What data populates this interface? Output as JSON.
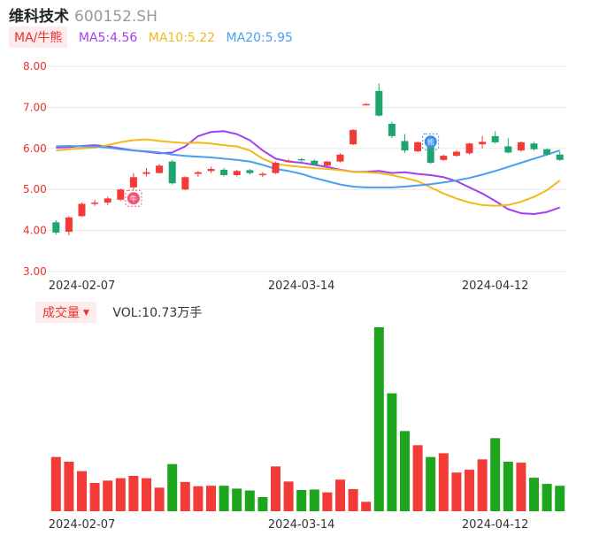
{
  "header": {
    "name": "维科技术",
    "code": "600152.SH"
  },
  "ma_legend": {
    "tag": "MA/牛熊",
    "items": [
      {
        "label": "MA5:4.56",
        "color": "#a23ff0"
      },
      {
        "label": "MA10:5.22",
        "color": "#f3b91b"
      },
      {
        "label": "MA20:5.95",
        "color": "#4a9ef0"
      }
    ]
  },
  "volume_legend": {
    "tag": "成交量",
    "caret": "▼",
    "value": "VOL:10.73万手"
  },
  "colors": {
    "up": "#f23a36",
    "down": "#1ea56e",
    "vol_down": "#1ea51e",
    "axis_text": "#e9302d",
    "grid": "#e8e8e8"
  },
  "markers": [
    {
      "index": 6,
      "label": "牛",
      "color": "#f0547a"
    },
    {
      "index": 29,
      "label": "熊",
      "color": "#3a8ef0"
    }
  ],
  "chart_data": [
    {
      "type": "candlestick",
      "title": "",
      "y_ticks": [
        "8.00",
        "7.00",
        "6.00",
        "5.00",
        "4.00",
        "3.00"
      ],
      "ylim": [
        3.0,
        8.0
      ],
      "x_tick_labels": [
        {
          "index": 2,
          "label": "2024-02-07"
        },
        {
          "index": 19,
          "label": "2024-03-14"
        },
        {
          "index": 34,
          "label": "2024-04-12"
        }
      ],
      "grid": true,
      "candles": [
        {
          "o": 4.2,
          "c": 3.95,
          "h": 4.25,
          "l": 3.9
        },
        {
          "o": 3.97,
          "c": 4.32,
          "h": 4.35,
          "l": 3.88
        },
        {
          "o": 4.35,
          "c": 4.65,
          "h": 4.68,
          "l": 4.33
        },
        {
          "o": 4.66,
          "c": 4.68,
          "h": 4.75,
          "l": 4.6
        },
        {
          "o": 4.68,
          "c": 4.78,
          "h": 4.82,
          "l": 4.62
        },
        {
          "o": 4.75,
          "c": 5.0,
          "h": 5.02,
          "l": 4.72
        },
        {
          "o": 5.05,
          "c": 5.3,
          "h": 5.4,
          "l": 5.0
        },
        {
          "o": 5.38,
          "c": 5.42,
          "h": 5.52,
          "l": 5.32
        },
        {
          "o": 5.4,
          "c": 5.58,
          "h": 5.62,
          "l": 5.38
        },
        {
          "o": 5.68,
          "c": 5.15,
          "h": 5.72,
          "l": 5.12
        },
        {
          "o": 5.0,
          "c": 5.3,
          "h": 5.32,
          "l": 4.98
        },
        {
          "o": 5.38,
          "c": 5.42,
          "h": 5.45,
          "l": 5.3
        },
        {
          "o": 5.45,
          "c": 5.5,
          "h": 5.55,
          "l": 5.4
        },
        {
          "o": 5.48,
          "c": 5.35,
          "h": 5.52,
          "l": 5.32
        },
        {
          "o": 5.35,
          "c": 5.45,
          "h": 5.48,
          "l": 5.32
        },
        {
          "o": 5.47,
          "c": 5.4,
          "h": 5.5,
          "l": 5.36
        },
        {
          "o": 5.35,
          "c": 5.38,
          "h": 5.42,
          "l": 5.3
        },
        {
          "o": 5.4,
          "c": 5.65,
          "h": 5.68,
          "l": 5.38
        },
        {
          "o": 5.7,
          "c": 5.7,
          "h": 5.74,
          "l": 5.66
        },
        {
          "o": 5.74,
          "c": 5.72,
          "h": 5.76,
          "l": 5.68
        },
        {
          "o": 5.7,
          "c": 5.6,
          "h": 5.73,
          "l": 5.58
        },
        {
          "o": 5.58,
          "c": 5.68,
          "h": 5.7,
          "l": 5.55
        },
        {
          "o": 5.68,
          "c": 5.85,
          "h": 5.88,
          "l": 5.66
        },
        {
          "o": 6.1,
          "c": 6.45,
          "h": 6.47,
          "l": 6.08
        },
        {
          "o": 7.08,
          "c": 7.08,
          "h": 7.1,
          "l": 7.06
        },
        {
          "o": 7.4,
          "c": 6.8,
          "h": 7.58,
          "l": 6.78
        },
        {
          "o": 6.6,
          "c": 6.3,
          "h": 6.65,
          "l": 6.25
        },
        {
          "o": 6.18,
          "c": 5.95,
          "h": 6.35,
          "l": 5.9
        },
        {
          "o": 5.93,
          "c": 6.15,
          "h": 6.17,
          "l": 5.9
        },
        {
          "o": 6.1,
          "c": 5.65,
          "h": 6.12,
          "l": 5.62
        },
        {
          "o": 5.72,
          "c": 5.82,
          "h": 5.85,
          "l": 5.7
        },
        {
          "o": 5.82,
          "c": 5.92,
          "h": 5.95,
          "l": 5.8
        },
        {
          "o": 5.88,
          "c": 6.12,
          "h": 6.14,
          "l": 5.85
        },
        {
          "o": 6.1,
          "c": 6.16,
          "h": 6.3,
          "l": 6.0
        },
        {
          "o": 6.3,
          "c": 6.15,
          "h": 6.42,
          "l": 6.12
        },
        {
          "o": 6.05,
          "c": 5.9,
          "h": 6.25,
          "l": 5.88
        },
        {
          "o": 5.95,
          "c": 6.15,
          "h": 6.17,
          "l": 5.92
        },
        {
          "o": 6.12,
          "c": 5.98,
          "h": 6.16,
          "l": 5.95
        },
        {
          "o": 5.98,
          "c": 5.85,
          "h": 6.0,
          "l": 5.82
        },
        {
          "o": 5.85,
          "c": 5.72,
          "h": 5.92,
          "l": 5.7
        }
      ],
      "ma_lines": [
        {
          "name": "MA5",
          "color": "#a23ff0",
          "values": [
            6.02,
            6.03,
            6.06,
            6.08,
            6.05,
            6.0,
            5.95,
            5.92,
            5.88,
            5.9,
            6.05,
            6.3,
            6.4,
            6.42,
            6.35,
            6.2,
            5.95,
            5.75,
            5.68,
            5.65,
            5.6,
            5.55,
            5.48,
            5.43,
            5.43,
            5.45,
            5.4,
            5.42,
            5.38,
            5.35,
            5.3,
            5.2,
            5.05,
            4.9,
            4.72,
            4.52,
            4.42,
            4.4,
            4.45,
            4.56
          ]
        },
        {
          "name": "MA10",
          "color": "#f3b91b",
          "values": [
            5.95,
            5.98,
            6.0,
            6.02,
            6.08,
            6.15,
            6.2,
            6.22,
            6.18,
            6.15,
            6.13,
            6.14,
            6.12,
            6.08,
            6.05,
            5.95,
            5.75,
            5.62,
            5.58,
            5.55,
            5.52,
            5.5,
            5.47,
            5.43,
            5.42,
            5.4,
            5.35,
            5.28,
            5.2,
            5.05,
            4.9,
            4.78,
            4.68,
            4.62,
            4.6,
            4.62,
            4.7,
            4.82,
            4.98,
            5.22
          ]
        },
        {
          "name": "MA20",
          "color": "#4a9ef0",
          "values": [
            6.05,
            6.06,
            6.05,
            6.05,
            6.02,
            5.98,
            5.95,
            5.93,
            5.9,
            5.85,
            5.82,
            5.8,
            5.78,
            5.75,
            5.72,
            5.68,
            5.6,
            5.5,
            5.45,
            5.38,
            5.28,
            5.2,
            5.12,
            5.07,
            5.05,
            5.05,
            5.05,
            5.07,
            5.1,
            5.13,
            5.17,
            5.22,
            5.28,
            5.36,
            5.45,
            5.55,
            5.65,
            5.75,
            5.85,
            5.95
          ]
        }
      ]
    },
    {
      "type": "bar",
      "title": "",
      "x_tick_labels": [
        {
          "index": 2,
          "label": "2024-02-07"
        },
        {
          "index": 19,
          "label": "2024-03-14"
        },
        {
          "index": 34,
          "label": "2024-04-12"
        }
      ],
      "values": [
        11.5,
        10.5,
        8.5,
        6.0,
        6.5,
        7.0,
        7.5,
        7.0,
        5.0,
        10.0,
        6.2,
        5.3,
        5.4,
        5.4,
        4.8,
        4.4,
        3.0,
        9.5,
        6.3,
        4.5,
        4.6,
        4.0,
        6.7,
        4.7,
        2.0,
        39.0,
        25.0,
        17.0,
        14.0,
        11.5,
        12.3,
        8.2,
        8.8,
        11.0,
        15.5,
        10.5,
        10.3,
        7.1,
        5.8,
        5.4
      ],
      "directions": [
        "up",
        "up",
        "up",
        "up",
        "up",
        "up",
        "up",
        "up",
        "up",
        "down",
        "up",
        "up",
        "up",
        "down",
        "down",
        "down",
        "down",
        "up",
        "up",
        "down",
        "down",
        "up",
        "up",
        "up",
        "up",
        "down",
        "down",
        "down",
        "up",
        "down",
        "up",
        "up",
        "up",
        "up",
        "down",
        "down",
        "up",
        "down",
        "down",
        "down"
      ]
    }
  ]
}
